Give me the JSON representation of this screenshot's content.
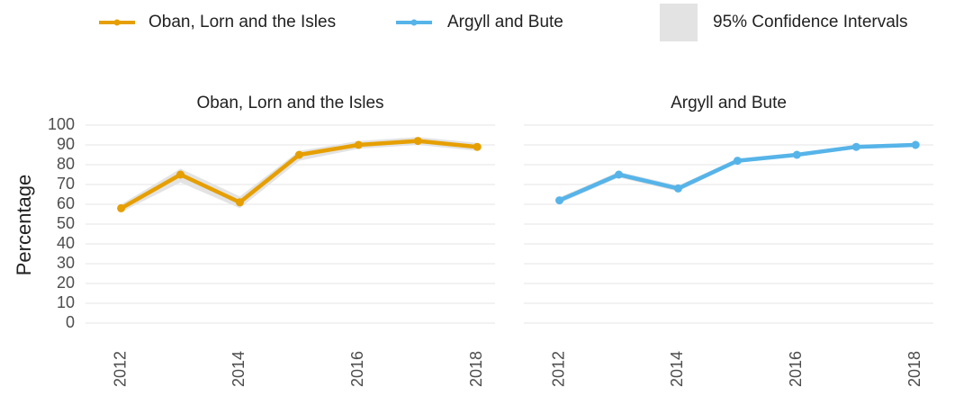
{
  "chart_data": [
    {
      "type": "line",
      "title": "Oban, Lorn and the Isles",
      "ylabel": "Percentage",
      "x": [
        2012,
        2013,
        2014,
        2015,
        2016,
        2017,
        2018
      ],
      "series": [
        {
          "name": "Oban, Lorn and the Isles",
          "color": "#e69f00",
          "values": [
            58,
            75,
            61,
            85,
            90,
            92,
            89
          ],
          "lower": [
            56,
            71,
            58,
            82,
            88,
            90,
            87
          ],
          "upper": [
            60,
            78,
            64,
            87,
            92,
            94,
            91
          ]
        }
      ],
      "ci_label": "95% Confidence Intervals",
      "ci_color": "#e3e3e3",
      "xlim": [
        2011.4,
        2018.3
      ],
      "xticks": [
        2012,
        2014,
        2016,
        2018
      ],
      "ylim": [
        0,
        100
      ],
      "yticks": [
        0,
        10,
        20,
        30,
        40,
        50,
        60,
        70,
        80,
        90,
        100
      ],
      "grid": true
    },
    {
      "type": "line",
      "title": "Argyll and Bute",
      "x": [
        2012,
        2013,
        2014,
        2015,
        2016,
        2017,
        2018
      ],
      "series": [
        {
          "name": "Argyll and Bute",
          "color": "#56b4e9",
          "values": [
            62,
            75,
            68,
            82,
            85,
            89,
            90
          ],
          "lower": [
            60.5,
            73.5,
            66.5,
            81,
            84,
            88,
            89
          ],
          "upper": [
            63.5,
            76.5,
            69.5,
            83,
            86,
            90,
            91
          ]
        }
      ],
      "xlim": [
        2011.4,
        2018.3
      ],
      "xticks": [
        2012,
        2014,
        2016,
        2018
      ],
      "ylim": [
        0,
        100
      ],
      "yticks": [
        0,
        10,
        20,
        30,
        40,
        50,
        60,
        70,
        80,
        90,
        100
      ],
      "grid": true
    }
  ]
}
